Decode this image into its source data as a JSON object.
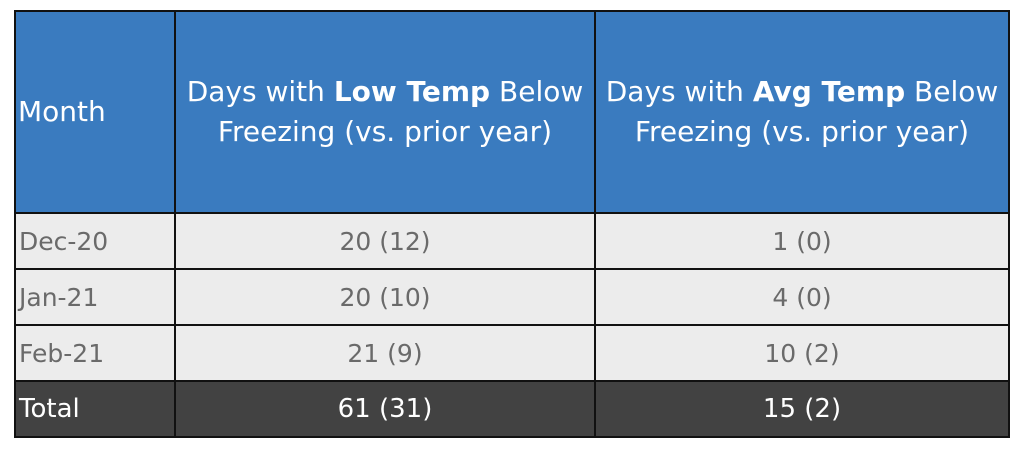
{
  "header": {
    "month": "Month",
    "low": {
      "prefix": "Days with ",
      "highlight": "Low Temp",
      "suffix": " Below",
      "line2": "Freezing (vs. prior year)"
    },
    "avg": {
      "prefix": "Days with ",
      "highlight": "Avg Temp",
      "suffix": " Below",
      "line2": "Freezing (vs. prior year)"
    }
  },
  "rows": [
    {
      "month": "Dec-20",
      "low": "20 (12)",
      "avg": "1 (0)"
    },
    {
      "month": "Jan-21",
      "low": "20 (10)",
      "avg": "4 (0)"
    },
    {
      "month": "Feb-21",
      "low": "21 (9)",
      "avg": "10 (2)"
    }
  ],
  "total": {
    "month": "Total",
    "low": "61 (31)",
    "avg": "15 (2)"
  },
  "colors": {
    "header_bg": "#3a7bbf",
    "row_bg": "#ececec",
    "total_bg": "#424242"
  }
}
